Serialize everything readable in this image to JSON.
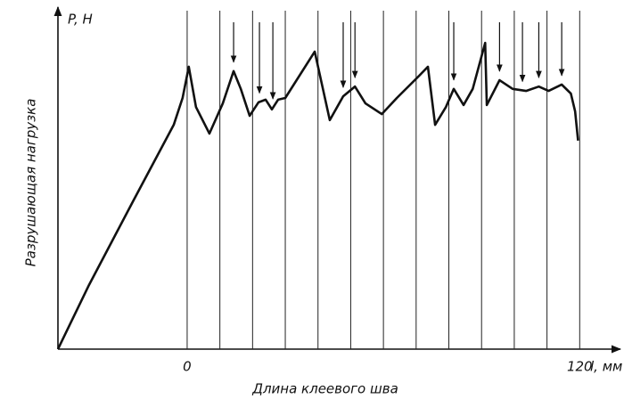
{
  "chart_data": {
    "type": "line",
    "y_label_short": "P, Н",
    "y_label": "Разрушающая нагрузка",
    "x_unit": "l, мм",
    "x_label": "Длина клеевого шва",
    "xlim": [
      -39.5,
      130
    ],
    "ylim": [
      0,
      100
    ],
    "xticks": [
      0,
      120
    ],
    "vlines": [
      0,
      10,
      20,
      30,
      40,
      50,
      60,
      70,
      80,
      90,
      100,
      110,
      120
    ],
    "arrows": [
      14.2,
      22.1,
      26.2,
      47.7,
      51.3,
      81.5,
      95.5,
      102.5,
      107.5,
      114.5
    ],
    "color": "#111111",
    "x": [
      -39.5,
      -30.0,
      -16.4,
      -4.1,
      -1.4,
      0.5,
      2.7,
      6.8,
      10.9,
      14.2,
      16.4,
      19.1,
      21.8,
      24.0,
      25.9,
      27.8,
      30.0,
      39.0,
      43.6,
      47.7,
      51.3,
      54.5,
      59.5,
      64.1,
      70.9,
      73.6,
      75.8,
      79.1,
      81.5,
      84.5,
      87.3,
      91.1,
      91.6,
      95.5,
      99.5,
      103.6,
      107.5,
      110.5,
      114.5,
      117.3,
      118.6,
      119.5
    ],
    "values": [
      0,
      19.1,
      44.3,
      66.8,
      74.8,
      84.1,
      72.1,
      64.2,
      73.2,
      82.8,
      77.5,
      69.5,
      73.5,
      74.3,
      71.4,
      74.3,
      74.8,
      88.6,
      68.2,
      75.3,
      78.2,
      73.2,
      70.0,
      74.8,
      81.4,
      84.1,
      66.8,
      72.1,
      77.5,
      72.7,
      77.5,
      91.2,
      72.7,
      80.1,
      77.5,
      76.9,
      78.2,
      76.9,
      78.8,
      76.1,
      70.8,
      62.1
    ]
  }
}
